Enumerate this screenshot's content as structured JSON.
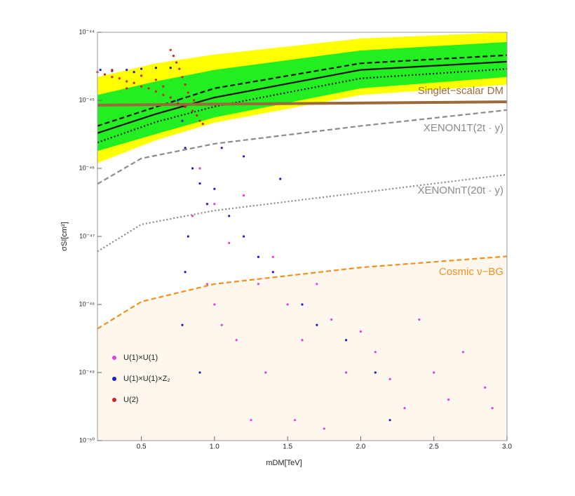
{
  "chart_data": {
    "type": "scatter",
    "x_label": "mDM[TeV]",
    "y_label": "σSI[cm²]",
    "xlim": [
      0.2,
      3.0
    ],
    "xticks": [
      0.5,
      {
        "value": 1.0,
        "label": "1.0"
      },
      1.5,
      {
        "value": 2.0,
        "label": "2.0"
      },
      2.5,
      {
        "value": 3.0,
        "label": "3.0"
      }
    ],
    "ylim": [
      1e-50,
      1e-44
    ],
    "y_log": true,
    "yticks": [
      {
        "value": 1e-50,
        "label": "10⁻⁵⁰"
      },
      {
        "value": 1e-49,
        "label": "10⁻⁴⁹"
      },
      {
        "value": 1e-48,
        "label": "10⁻⁴⁸"
      },
      {
        "value": 1e-47,
        "label": "10⁻⁴⁷"
      },
      {
        "value": 1e-46,
        "label": "10⁻⁴⁶"
      },
      {
        "value": 1e-45,
        "label": "10⁻⁴⁵"
      },
      {
        "value": 1e-44,
        "label": "10⁻⁴⁴"
      }
    ],
    "bands": [
      {
        "color": "#ffff00",
        "x": [
          0.2,
          0.6,
          1.0,
          2.0,
          3.0
        ],
        "upper": [
          2.2e-45,
          3.5e-45,
          4.7e-45,
          8.1e-45,
          1e-44
        ],
        "lower": [
          1.2e-46,
          2.6e-46,
          4.7e-46,
          1.2e-45,
          1.7e-45
        ]
      },
      {
        "color": "#22ee22",
        "x": [
          0.2,
          0.6,
          1.0,
          2.0,
          3.0
        ],
        "upper": [
          1.2e-45,
          1.9e-45,
          2.8e-45,
          5.4e-45,
          7.2e-45
        ],
        "lower": [
          1.8e-46,
          3.2e-46,
          5.6e-46,
          1.5e-45,
          2.2e-45
        ]
      }
    ],
    "curves": [
      {
        "name": "Cosmic ν−BG",
        "color": "#f0901e",
        "dash": "dashed",
        "fill_below": "#fdf7ee",
        "x": [
          0.2,
          0.5,
          1.0,
          2.0,
          3.0
        ],
        "values": [
          4.4e-49,
          1.1e-48,
          2e-48,
          3.5e-48,
          5.1e-48
        ]
      },
      {
        "color": "#111111",
        "dash": "solid",
        "x": [
          0.2,
          0.6,
          1.0,
          2.0,
          3.0
        ],
        "values": [
          3.3e-46,
          6.3e-46,
          1.1e-45,
          2.8e-45,
          3.7e-45
        ]
      },
      {
        "color": "#111111",
        "dash": "dashed",
        "x": [
          0.2,
          0.6,
          1.0,
          2.0,
          3.0
        ],
        "values": [
          4.2e-46,
          8e-46,
          1.5e-45,
          3.5e-45,
          4.6e-45
        ]
      },
      {
        "color": "#111111",
        "dash": "dotted",
        "x": [
          0.2,
          0.6,
          1.0,
          2.0,
          3.0
        ],
        "values": [
          2.4e-46,
          4.8e-46,
          8.1e-46,
          2.1e-45,
          2.9e-45
        ]
      },
      {
        "name": "Singlet−scalar DM",
        "color": "#9a6a3a",
        "dash": "solid",
        "x": [
          0.2,
          3.0
        ],
        "values": [
          8.5e-46,
          9.5e-46
        ]
      },
      {
        "name": "XENON1T(2t · y)",
        "color": "#8a8a8a",
        "dash": "dashed",
        "x": [
          0.2,
          0.5,
          1.0,
          2.0,
          3.0
        ],
        "values": [
          5.9e-47,
          1.4e-46,
          2.3e-46,
          4.2e-46,
          7.2e-46
        ]
      },
      {
        "name": "XENONnT(20t · y)",
        "color": "#8a8a8a",
        "dash": "dotted",
        "x": [
          0.2,
          0.5,
          1.0,
          2.0,
          3.0
        ],
        "values": [
          6e-48,
          1.5e-47,
          2.4e-47,
          4.4e-47,
          8.1e-47
        ]
      }
    ],
    "series": [
      {
        "name": "U(1)×U(1)",
        "color": "#e040e0",
        "x": [
          0.9,
          1.0,
          1.1,
          1.2,
          1.3,
          1.4,
          1.5,
          1.6,
          1.7,
          1.8,
          1.9,
          2.0,
          2.1,
          2.2,
          2.3,
          2.5,
          2.6,
          2.7,
          2.85,
          2.9,
          0.95,
          1.05,
          1.25,
          1.35,
          1.55,
          1.75,
          2.4,
          1.15,
          0.85,
          1.0
        ],
        "values": [
          1e-46,
          3e-47,
          8e-48,
          4e-47,
          2e-48,
          5e-48,
          1e-48,
          3e-49,
          2e-48,
          6e-49,
          1e-49,
          4e-49,
          2e-49,
          8e-50,
          3e-50,
          1e-49,
          4e-50,
          2e-49,
          6e-50,
          3e-50,
          2e-48,
          5e-49,
          2e-50,
          1e-49,
          2e-50,
          1.5e-50,
          6e-49,
          3e-49,
          2e-47,
          1e-48
        ]
      },
      {
        "name": "U(1)×U(1)×Z₂",
        "color": "#1a1ad0",
        "x": [
          0.22,
          0.3,
          0.4,
          0.5,
          0.6,
          0.7,
          0.45,
          0.75,
          0.78,
          0.8,
          0.85,
          0.9,
          0.95,
          0.82,
          1.0,
          1.1,
          1.2,
          1.3,
          0.8,
          1.4,
          1.6,
          0.78,
          1.7,
          1.9,
          2.1,
          2.2,
          0.9,
          1.05,
          1.2,
          1.45
        ],
        "values": [
          2.8e-45,
          2.7e-45,
          2.8e-45,
          2.9e-45,
          3e-45,
          3e-45,
          2.6e-45,
          1e-45,
          5e-46,
          2e-46,
          1e-46,
          6e-47,
          3e-47,
          1e-47,
          5e-47,
          2e-47,
          1e-47,
          5e-48,
          3e-48,
          3e-48,
          1e-48,
          5e-49,
          5e-49,
          3e-49,
          1e-49,
          2e-50,
          1e-49,
          2e-46,
          1.5e-46,
          7e-47
        ]
      },
      {
        "name": "U(2)",
        "color": "#d42020",
        "x": [
          0.2,
          0.25,
          0.3,
          0.35,
          0.4,
          0.45,
          0.5,
          0.55,
          0.6,
          0.65,
          0.7,
          0.75,
          0.8,
          0.85,
          0.88,
          0.9,
          0.92,
          0.7,
          0.72,
          0.74,
          0.76,
          0.78,
          0.8,
          0.82,
          0.86,
          0.3,
          0.5,
          0.6,
          0.4,
          0.65
        ],
        "values": [
          2.6e-45,
          2.4e-45,
          2.2e-45,
          2.1e-45,
          1.9e-45,
          1.8e-45,
          1.6e-45,
          1.5e-45,
          1.35e-45,
          1.2e-45,
          1.1e-45,
          9e-46,
          8e-46,
          7e-46,
          6e-46,
          5e-46,
          4.5e-46,
          5.5e-45,
          4.5e-45,
          3.6e-45,
          2.9e-45,
          2.2e-45,
          1.7e-45,
          1.3e-45,
          1e-45,
          2.8e-45,
          2.3e-45,
          2e-45,
          1.5e-45,
          1.6e-45
        ]
      }
    ]
  }
}
